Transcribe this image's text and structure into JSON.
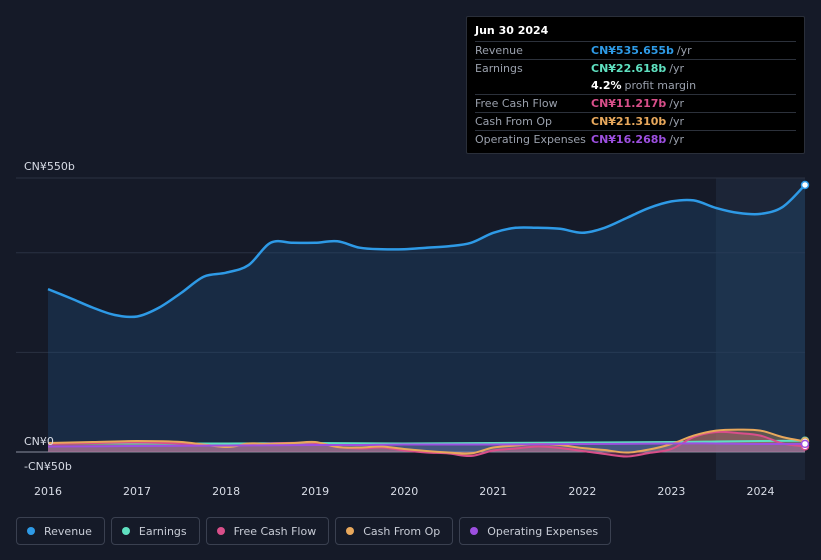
{
  "chart_data": {
    "type": "area",
    "x_labels": [
      "2016",
      "2017",
      "2018",
      "2019",
      "2020",
      "2021",
      "2022",
      "2023",
      "2024"
    ],
    "y_axis": {
      "top_label": "CN¥550b",
      "zero_label": "CN¥0",
      "bottom_label": "-CN¥50b",
      "ylim": [
        -50,
        550
      ]
    },
    "x_range": [
      2016,
      2024.5
    ],
    "forecast_start": 2023.5,
    "series": [
      {
        "name": "Revenue",
        "color": "#2e9ae6",
        "x": [
          2016,
          2016.25,
          2016.5,
          2016.75,
          2017,
          2017.25,
          2017.5,
          2017.75,
          2018,
          2018.25,
          2018.5,
          2018.75,
          2019,
          2019.25,
          2019.5,
          2019.75,
          2020,
          2020.25,
          2020.5,
          2020.75,
          2021,
          2021.25,
          2021.5,
          2021.75,
          2022,
          2022.25,
          2022.5,
          2022.75,
          2023,
          2023.25,
          2023.5,
          2023.75,
          2024,
          2024.25,
          2024.5
        ],
        "values": [
          327,
          309,
          290,
          275,
          272,
          290,
          320,
          352,
          360,
          375,
          420,
          420,
          420,
          423,
          410,
          407,
          407,
          410,
          413,
          420,
          440,
          450,
          450,
          448,
          440,
          450,
          470,
          490,
          503,
          505,
          490,
          480,
          478,
          492,
          536
        ]
      },
      {
        "name": "Earnings",
        "color": "#5fe0c0",
        "x": [
          2016,
          2017,
          2018,
          2019,
          2020,
          2021,
          2022,
          2023,
          2023.5,
          2024,
          2024.5
        ],
        "values": [
          18,
          17,
          17,
          18,
          17,
          18,
          19,
          20,
          21,
          22,
          22.6
        ]
      },
      {
        "name": "Free Cash Flow",
        "color": "#d94f8a",
        "x": [
          2016,
          2016.5,
          2017,
          2017.5,
          2018,
          2018.5,
          2019,
          2019.25,
          2019.5,
          2019.75,
          2020,
          2020.25,
          2020.5,
          2020.75,
          2021,
          2021.25,
          2021.5,
          2021.75,
          2022,
          2022.25,
          2022.5,
          2022.75,
          2023,
          2023.25,
          2023.5,
          2023.75,
          2024,
          2024.25,
          2024.5
        ],
        "values": [
          16,
          18,
          19,
          17,
          12,
          17,
          18,
          10,
          7,
          9,
          3,
          -1,
          -3,
          -8,
          3,
          7,
          11,
          8,
          2,
          -4,
          -9,
          -2,
          6,
          30,
          40,
          38,
          33,
          17,
          11.2
        ]
      },
      {
        "name": "Cash From Op",
        "color": "#e8a85c",
        "x": [
          2016,
          2016.5,
          2017,
          2017.5,
          2018,
          2018.25,
          2018.5,
          2018.75,
          2019,
          2019.25,
          2019.5,
          2019.75,
          2020,
          2020.25,
          2020.5,
          2020.75,
          2021,
          2021.25,
          2021.5,
          2021.75,
          2022,
          2022.25,
          2022.5,
          2022.75,
          2023,
          2023.25,
          2023.5,
          2023.75,
          2024,
          2024.25,
          2024.5
        ],
        "values": [
          18,
          20,
          22,
          20,
          10,
          17,
          16,
          18,
          20,
          10,
          9,
          11,
          6,
          2,
          -1,
          -3,
          9,
          13,
          16,
          14,
          8,
          4,
          -1,
          5,
          16,
          33,
          43,
          45,
          43,
          30,
          21.3
        ]
      },
      {
        "name": "Operating Expenses",
        "color": "#9d4fe0",
        "x": [
          2016,
          2017,
          2018,
          2019,
          2019.5,
          2020,
          2021,
          2022,
          2023,
          2023.5,
          2024,
          2024.5
        ],
        "values": [
          11,
          12,
          13,
          14,
          14,
          15,
          15,
          16,
          17,
          17,
          16,
          16.3
        ]
      }
    ]
  },
  "tooltip": {
    "date": "Jun 30 2024",
    "rows": [
      {
        "label": "Revenue",
        "value": "CN¥535.655b",
        "unit": "/yr",
        "color": "#2e9ae6"
      },
      {
        "label": "Earnings",
        "value": "CN¥22.618b",
        "unit": "/yr",
        "color": "#5fe0c0"
      },
      {
        "label": "Free Cash Flow",
        "value": "CN¥11.217b",
        "unit": "/yr",
        "color": "#d94f8a"
      },
      {
        "label": "Cash From Op",
        "value": "CN¥21.310b",
        "unit": "/yr",
        "color": "#e8a85c"
      },
      {
        "label": "Operating Expenses",
        "value": "CN¥16.268b",
        "unit": "/yr",
        "color": "#9d4fe0"
      }
    ],
    "margin": {
      "value": "4.2%",
      "text": "profit margin"
    }
  },
  "legend": [
    {
      "label": "Revenue",
      "color": "#2e9ae6"
    },
    {
      "label": "Earnings",
      "color": "#5fe0c0"
    },
    {
      "label": "Free Cash Flow",
      "color": "#d94f8a"
    },
    {
      "label": "Cash From Op",
      "color": "#e8a85c"
    },
    {
      "label": "Operating Expenses",
      "color": "#9d4fe0"
    }
  ]
}
